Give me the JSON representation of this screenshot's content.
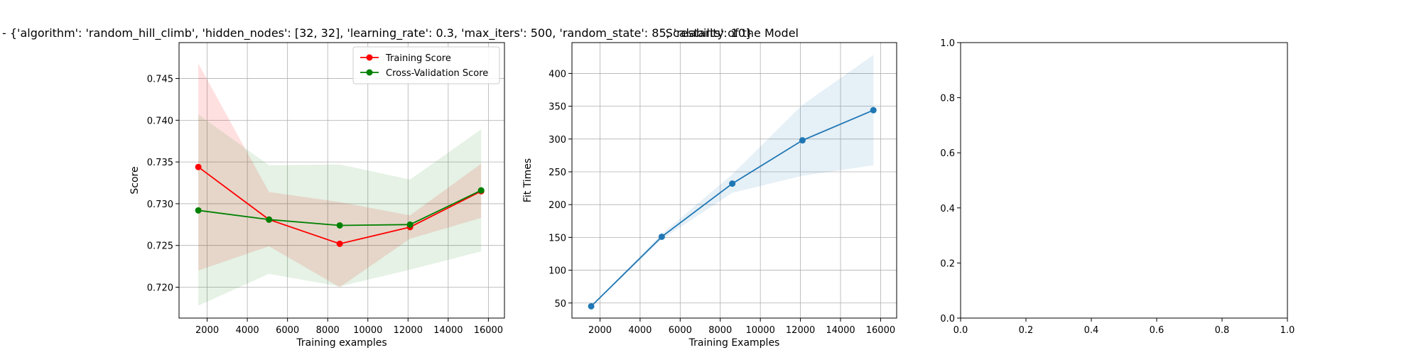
{
  "figure": {
    "title_left": "- {'algorithm': 'random_hill_climb', 'hidden_nodes': [32, 32], 'learning_rate': 0.3, 'max_iters': 500, 'random_state': 85, 'restarts': 10}",
    "title_right": "Scalability of the Model"
  },
  "chart_data": [
    {
      "type": "line",
      "title": "",
      "xlabel": "Training examples",
      "ylabel": "Score",
      "xlim": [
        600,
        16800
      ],
      "ylim": [
        0.7163,
        0.7493
      ],
      "xticks": [
        2000,
        4000,
        6000,
        8000,
        10000,
        12000,
        14000,
        16000
      ],
      "yticks": [
        0.72,
        0.725,
        0.73,
        0.735,
        0.74,
        0.745
      ],
      "ytick_labels": [
        "0.720",
        "0.725",
        "0.730",
        "0.735",
        "0.740",
        "0.745"
      ],
      "grid": true,
      "legend": "top-right",
      "x": [
        1560,
        5080,
        8600,
        12100,
        15640
      ],
      "series": [
        {
          "name": "Training Score",
          "color": "#ff0000",
          "fill": "rgba(255,0,0,0.12)",
          "values": [
            0.7344,
            0.7281,
            0.7252,
            0.7272,
            0.7315
          ],
          "upper": [
            0.7468,
            0.7314,
            0.7302,
            0.7286,
            0.7348
          ],
          "lower": [
            0.722,
            0.7249,
            0.72,
            0.7258,
            0.7283
          ]
        },
        {
          "name": "Cross-Validation Score",
          "color": "#008000",
          "fill": "rgba(0,128,0,0.10)",
          "values": [
            0.7292,
            0.7281,
            0.7274,
            0.7275,
            0.7316
          ],
          "upper": [
            0.7407,
            0.7346,
            0.7347,
            0.7329,
            0.7389
          ],
          "lower": [
            0.7178,
            0.7216,
            0.7201,
            0.7221,
            0.7243
          ]
        }
      ]
    },
    {
      "type": "line",
      "title": "",
      "xlabel": "Training Examples",
      "ylabel": "Fit Times",
      "xlim": [
        600,
        16800
      ],
      "ylim": [
        27,
        447
      ],
      "xticks": [
        2000,
        4000,
        6000,
        8000,
        10000,
        12000,
        14000,
        16000
      ],
      "yticks": [
        50,
        100,
        150,
        200,
        250,
        300,
        350,
        400
      ],
      "ytick_labels": [
        "50",
        "100",
        "150",
        "200",
        "250",
        "300",
        "350",
        "400"
      ],
      "grid": true,
      "x": [
        1560,
        5080,
        8600,
        12100,
        15640
      ],
      "series": [
        {
          "name": "",
          "color": "#1f77b4",
          "fill": "rgba(31,119,180,0.11)",
          "values": [
            45,
            151,
            232,
            298,
            344
          ],
          "upper": [
            46,
            155,
            246,
            352,
            428
          ],
          "lower": [
            44,
            147,
            218,
            244,
            260
          ]
        }
      ]
    },
    {
      "type": "line",
      "title": "",
      "xlabel": "",
      "ylabel": "",
      "xlim": [
        0,
        1
      ],
      "ylim": [
        0,
        1
      ],
      "xticks": [
        0,
        0.2,
        0.4,
        0.6,
        0.8,
        1.0
      ],
      "xtick_labels": [
        "0.0",
        "0.2",
        "0.4",
        "0.6",
        "0.8",
        "1.0"
      ],
      "yticks": [
        0,
        0.2,
        0.4,
        0.6,
        0.8,
        1.0
      ],
      "ytick_labels": [
        "0.0",
        "0.2",
        "0.4",
        "0.6",
        "0.8",
        "1.0"
      ],
      "grid": false,
      "x": [],
      "series": []
    }
  ]
}
